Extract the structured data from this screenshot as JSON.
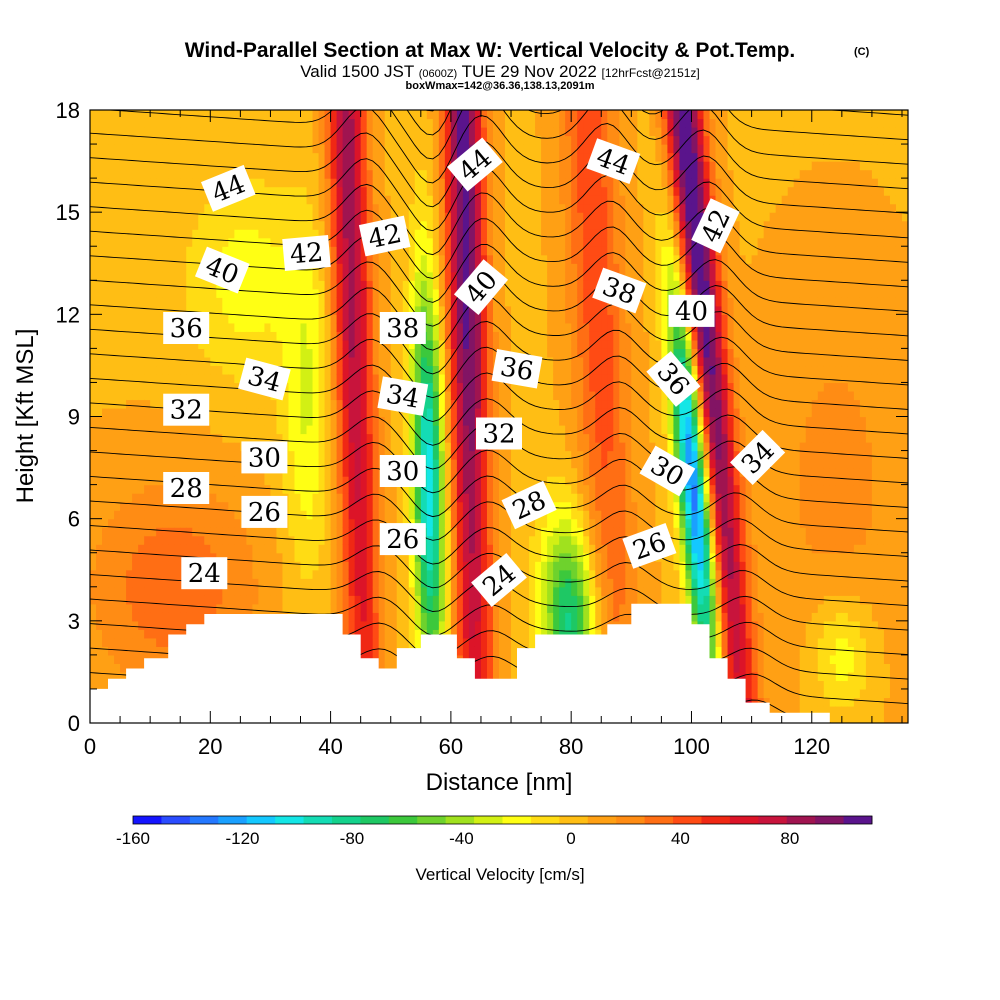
{
  "chart_data": {
    "type": "heatmap",
    "title": "Wind-Parallel Section at Max W: Vertical Velocity & Pot.Temp.",
    "copyright": "(C)",
    "subtitle_valid": "Valid 1500 JST",
    "subtitle_utc": "(0600Z)",
    "subtitle_date": "TUE 29 Nov 2022",
    "subtitle_fcst": "[12hrFcst@2151z]",
    "subtitle_box": "boxWmax=142@36.36,138.13,2091m",
    "xlabel": "Distance [nm]",
    "ylabel": "Height [Kft MSL]",
    "xlim": [
      0,
      136
    ],
    "ylim": [
      0,
      18
    ],
    "x_ticks": [
      0,
      20,
      40,
      60,
      80,
      100,
      120
    ],
    "y_ticks": [
      0,
      3,
      6,
      9,
      12,
      15,
      18
    ],
    "colorbar": {
      "label": "Vertical Velocity [cm/s]",
      "ticks": [
        -160,
        -120,
        -80,
        -40,
        0,
        40,
        80
      ],
      "range": [
        -160,
        110
      ],
      "colors": [
        "#1414ff",
        "#2a4cff",
        "#2478ff",
        "#1aa0ff",
        "#14c8ff",
        "#14e6e6",
        "#14dcb4",
        "#14d28c",
        "#1ec864",
        "#3cc83c",
        "#6ed22d",
        "#a0e11e",
        "#d2f014",
        "#ffff14",
        "#ffdc14",
        "#ffbe14",
        "#ffa014",
        "#ff8c14",
        "#ff6e14",
        "#ff4b14",
        "#f02814",
        "#dc1428",
        "#c8143c",
        "#a01450",
        "#821464",
        "#5a148c"
      ]
    },
    "updraft_columns": [
      {
        "center": 44,
        "peak": 80
      },
      {
        "center": 63,
        "peak": 100
      },
      {
        "center": 103,
        "peak": 110
      },
      {
        "center": 85,
        "peak": 40
      }
    ],
    "downdraft_columns": [
      {
        "center": 56,
        "peak": -110
      },
      {
        "center": 99,
        "peak": -150
      },
      {
        "center": 78,
        "peak": -85
      }
    ],
    "terrain": [
      [
        0,
        1.0
      ],
      [
        3,
        1.0
      ],
      [
        3,
        1.3
      ],
      [
        6,
        1.3
      ],
      [
        6,
        1.6
      ],
      [
        9,
        1.6
      ],
      [
        9,
        1.9
      ],
      [
        13,
        1.9
      ],
      [
        13,
        2.6
      ],
      [
        16,
        2.6
      ],
      [
        16,
        2.9
      ],
      [
        19,
        2.9
      ],
      [
        19,
        3.2
      ],
      [
        42,
        3.2
      ],
      [
        42,
        2.6
      ],
      [
        45,
        2.6
      ],
      [
        45,
        1.9
      ],
      [
        48,
        1.9
      ],
      [
        48,
        1.6
      ],
      [
        51,
        1.6
      ],
      [
        51,
        2.2
      ],
      [
        55,
        2.2
      ],
      [
        55,
        2.6
      ],
      [
        61,
        2.6
      ],
      [
        61,
        1.9
      ],
      [
        64,
        1.9
      ],
      [
        64,
        1.3
      ],
      [
        71,
        1.3
      ],
      [
        71,
        2.2
      ],
      [
        74,
        2.2
      ],
      [
        74,
        2.6
      ],
      [
        86,
        2.6
      ],
      [
        86,
        2.9
      ],
      [
        90,
        2.9
      ],
      [
        90,
        3.5
      ],
      [
        100,
        3.5
      ],
      [
        100,
        2.9
      ],
      [
        103,
        2.9
      ],
      [
        103,
        1.9
      ],
      [
        106,
        1.9
      ],
      [
        106,
        1.3
      ],
      [
        109,
        1.3
      ],
      [
        109,
        0.6
      ],
      [
        113,
        0.6
      ],
      [
        113,
        0.3
      ],
      [
        123,
        0.3
      ],
      [
        123,
        0.0
      ],
      [
        136,
        0.0
      ]
    ],
    "theta_levels": [
      18,
      50
    ],
    "contour_labels": [
      {
        "text": "44",
        "x": 23,
        "y": 15.7,
        "angle": -22
      },
      {
        "text": "42",
        "x": 36,
        "y": 13.8,
        "angle": -5
      },
      {
        "text": "40",
        "x": 22,
        "y": 13.3,
        "angle": 22
      },
      {
        "text": "36",
        "x": 16,
        "y": 11.6,
        "angle": 0
      },
      {
        "text": "34",
        "x": 29,
        "y": 10.1,
        "angle": 15
      },
      {
        "text": "32",
        "x": 16,
        "y": 9.2,
        "angle": 0
      },
      {
        "text": "30",
        "x": 29,
        "y": 7.8,
        "angle": 0
      },
      {
        "text": "28",
        "x": 16,
        "y": 6.9,
        "angle": 0
      },
      {
        "text": "26",
        "x": 29,
        "y": 6.2,
        "angle": 0
      },
      {
        "text": "24",
        "x": 19,
        "y": 4.4,
        "angle": 0
      },
      {
        "text": "42",
        "x": 49,
        "y": 14.3,
        "angle": -12
      },
      {
        "text": "38",
        "x": 52,
        "y": 11.6,
        "angle": 0
      },
      {
        "text": "34",
        "x": 52,
        "y": 9.6,
        "angle": 10
      },
      {
        "text": "30",
        "x": 52,
        "y": 7.4,
        "angle": 0
      },
      {
        "text": "26",
        "x": 52,
        "y": 5.4,
        "angle": 0
      },
      {
        "text": "44",
        "x": 64,
        "y": 16.4,
        "angle": -40
      },
      {
        "text": "40",
        "x": 65,
        "y": 12.8,
        "angle": -50
      },
      {
        "text": "36",
        "x": 71,
        "y": 10.4,
        "angle": 10
      },
      {
        "text": "32",
        "x": 68,
        "y": 8.5,
        "angle": 0
      },
      {
        "text": "28",
        "x": 73,
        "y": 6.4,
        "angle": -25
      },
      {
        "text": "24",
        "x": 68,
        "y": 4.2,
        "angle": -40
      },
      {
        "text": "44",
        "x": 87,
        "y": 16.5,
        "angle": 20
      },
      {
        "text": "38",
        "x": 88,
        "y": 12.7,
        "angle": 20
      },
      {
        "text": "40",
        "x": 100,
        "y": 12.1,
        "angle": 0
      },
      {
        "text": "42",
        "x": 104,
        "y": 14.6,
        "angle": -65
      },
      {
        "text": "36",
        "x": 97,
        "y": 10.1,
        "angle": 50
      },
      {
        "text": "30",
        "x": 96,
        "y": 7.4,
        "angle": 30
      },
      {
        "text": "26",
        "x": 93,
        "y": 5.2,
        "angle": -20
      },
      {
        "text": "34",
        "x": 111,
        "y": 7.8,
        "angle": -45
      }
    ]
  }
}
